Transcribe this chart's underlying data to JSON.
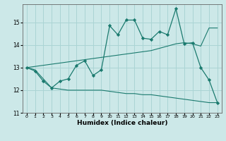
{
  "title": "",
  "xlabel": "Humidex (Indice chaleur)",
  "bg_color": "#cce8e8",
  "line_color": "#1a7a6e",
  "grid_color": "#aad4d4",
  "xlim": [
    -0.5,
    23.5
  ],
  "ylim": [
    11.0,
    15.8
  ],
  "yticks": [
    11,
    12,
    13,
    14,
    15
  ],
  "xticks": [
    0,
    1,
    2,
    3,
    4,
    5,
    6,
    7,
    8,
    9,
    10,
    11,
    12,
    13,
    14,
    15,
    16,
    17,
    18,
    19,
    20,
    21,
    22,
    23
  ],
  "line1_x": [
    0,
    1,
    2,
    3,
    4,
    5,
    6,
    7,
    8,
    9,
    10,
    11,
    12,
    13,
    14,
    15,
    16,
    17,
    18,
    19,
    20,
    21,
    22,
    23
  ],
  "line1_y": [
    13.0,
    12.85,
    12.4,
    12.1,
    12.4,
    12.5,
    13.1,
    13.3,
    12.65,
    12.9,
    14.85,
    14.45,
    15.1,
    15.1,
    14.3,
    14.25,
    14.6,
    14.45,
    15.6,
    14.05,
    14.1,
    13.0,
    12.45,
    11.45
  ],
  "line2_x": [
    0,
    1,
    2,
    3,
    4,
    5,
    6,
    7,
    8,
    9,
    10,
    11,
    12,
    13,
    14,
    15,
    16,
    17,
    18,
    19,
    20,
    21,
    22,
    23
  ],
  "line2_y": [
    13.0,
    13.05,
    13.1,
    13.15,
    13.2,
    13.25,
    13.3,
    13.35,
    13.4,
    13.45,
    13.5,
    13.55,
    13.6,
    13.65,
    13.7,
    13.75,
    13.85,
    13.95,
    14.05,
    14.1,
    14.05,
    13.95,
    14.75,
    14.75
  ],
  "line3_x": [
    0,
    1,
    2,
    3,
    4,
    5,
    6,
    7,
    8,
    9,
    10,
    11,
    12,
    13,
    14,
    15,
    16,
    17,
    18,
    19,
    20,
    21,
    22,
    23
  ],
  "line3_y": [
    13.0,
    12.9,
    12.5,
    12.1,
    12.05,
    12.0,
    12.0,
    12.0,
    12.0,
    12.0,
    11.95,
    11.9,
    11.85,
    11.85,
    11.8,
    11.8,
    11.75,
    11.7,
    11.65,
    11.6,
    11.55,
    11.5,
    11.45,
    11.45
  ]
}
